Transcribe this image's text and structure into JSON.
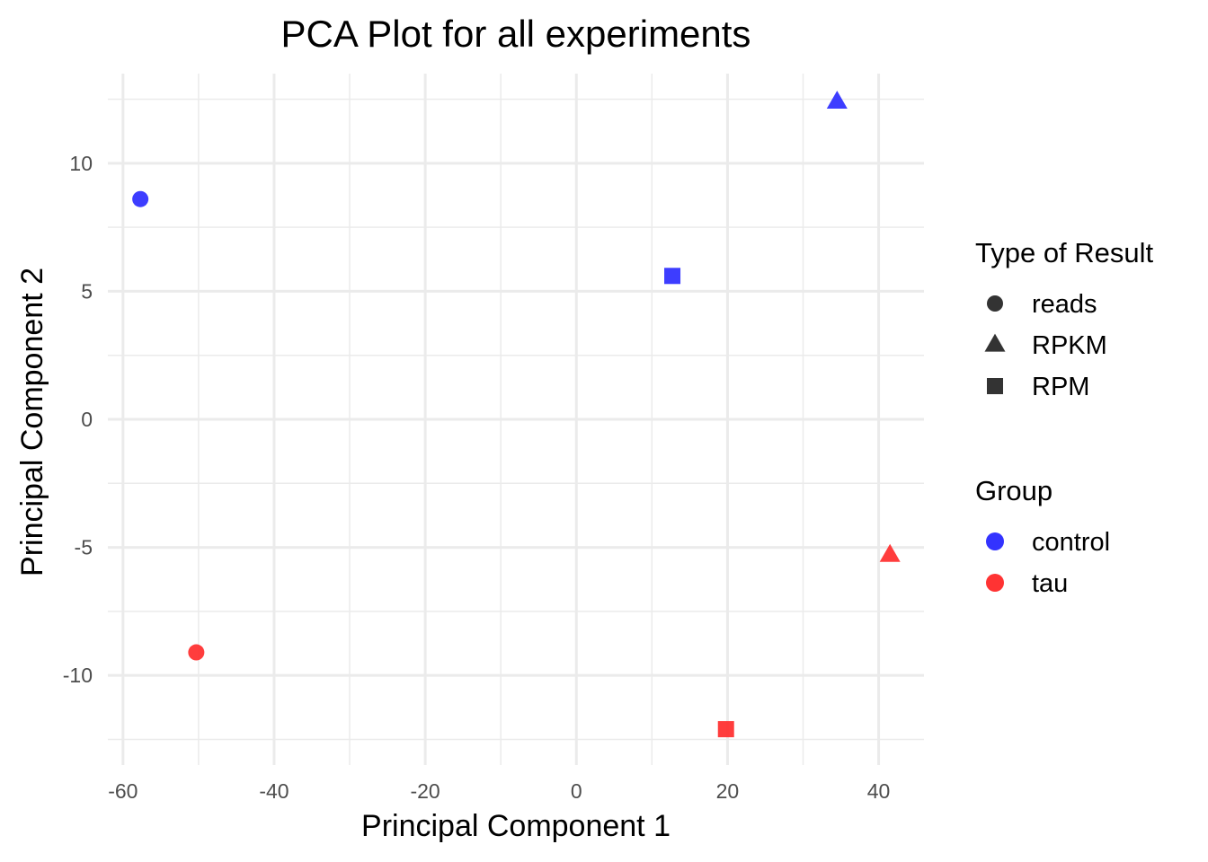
{
  "chart_data": {
    "type": "scatter",
    "title": "PCA Plot for all experiments",
    "xlabel": "Principal Component 1",
    "ylabel": "Principal Component 2",
    "xlim": [
      -62,
      46
    ],
    "ylim": [
      -13.5,
      13.5
    ],
    "x_ticks": [
      -60,
      -40,
      -20,
      0,
      20,
      40
    ],
    "y_ticks": [
      -10,
      -5,
      0,
      5,
      10
    ],
    "grid": true,
    "points": [
      {
        "x": -57.7,
        "y": 8.6,
        "shape": "reads",
        "group": "control"
      },
      {
        "x": 12.7,
        "y": 5.6,
        "shape": "RPM",
        "group": "control"
      },
      {
        "x": 34.5,
        "y": 12.4,
        "shape": "RPKM",
        "group": "control"
      },
      {
        "x": -50.3,
        "y": -9.1,
        "shape": "reads",
        "group": "tau"
      },
      {
        "x": 19.8,
        "y": -12.1,
        "shape": "RPM",
        "group": "tau"
      },
      {
        "x": 41.5,
        "y": -5.3,
        "shape": "RPKM",
        "group": "tau"
      }
    ],
    "legend": {
      "placement": "right",
      "shape_title": "Type of Result",
      "shapes": [
        {
          "label": "reads",
          "marker": "circle"
        },
        {
          "label": "RPKM",
          "marker": "triangle"
        },
        {
          "label": "RPM",
          "marker": "square"
        }
      ],
      "color_title": "Group",
      "colors": [
        {
          "label": "control",
          "color": "#3333ff"
        },
        {
          "label": "tau",
          "color": "#ff3333"
        }
      ],
      "shape_key_color": "#333333"
    }
  }
}
